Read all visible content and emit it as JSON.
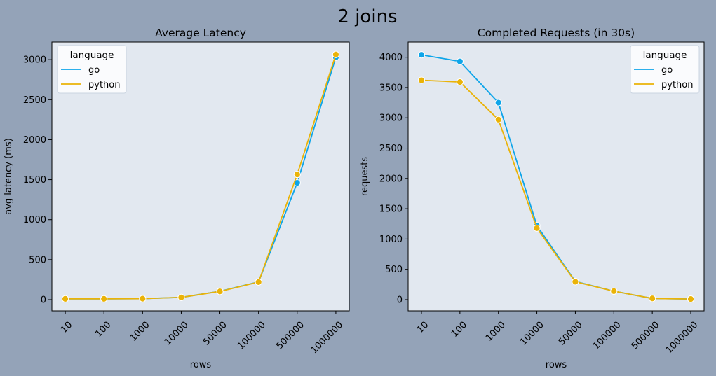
{
  "figure": {
    "suptitle": "2 joins"
  },
  "colors": {
    "go": "#0ea5e9",
    "python": "#eab308",
    "plot_bg": "#e2e8f0",
    "figure_bg": "#94a3b8"
  },
  "chart_data": [
    {
      "type": "line",
      "title": "Average Latency",
      "xlabel": "rows",
      "ylabel": "avg latency (ms)",
      "categories": [
        "10",
        "100",
        "1000",
        "10000",
        "50000",
        "100000",
        "500000",
        "1000000"
      ],
      "ylim": [
        -140,
        3220
      ],
      "yticks": [
        0,
        500,
        1000,
        1500,
        2000,
        2500,
        3000
      ],
      "legend": {
        "title": "language",
        "position": "top-left"
      },
      "series": [
        {
          "name": "go",
          "values": [
            10,
            10,
            12,
            28,
            105,
            222,
            1460,
            3030
          ]
        },
        {
          "name": "python",
          "values": [
            10,
            10,
            12,
            28,
            103,
            220,
            1565,
            3065
          ]
        }
      ]
    },
    {
      "type": "line",
      "title": "Completed Requests (in 30s)",
      "xlabel": "rows",
      "ylabel": "requests",
      "categories": [
        "10",
        "100",
        "1000",
        "10000",
        "50000",
        "100000",
        "500000",
        "1000000"
      ],
      "ylim": [
        -185,
        4250
      ],
      "yticks": [
        0,
        500,
        1000,
        1500,
        2000,
        2500,
        3000,
        3500,
        4000
      ],
      "legend": {
        "title": "language",
        "position": "top-right"
      },
      "series": [
        {
          "name": "go",
          "values": [
            4040,
            3930,
            3250,
            1220,
            300,
            140,
            20,
            10
          ]
        },
        {
          "name": "python",
          "values": [
            3620,
            3590,
            2970,
            1180,
            295,
            140,
            20,
            10
          ]
        }
      ]
    }
  ]
}
